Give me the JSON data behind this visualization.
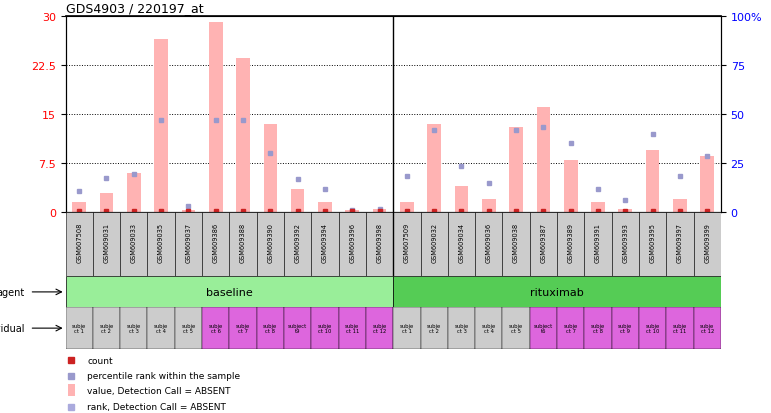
{
  "title": "GDS4903 / 220197_at",
  "samples": [
    "GSM607508",
    "GSM609031",
    "GSM609033",
    "GSM609035",
    "GSM609037",
    "GSM609386",
    "GSM609388",
    "GSM609390",
    "GSM609392",
    "GSM609394",
    "GSM609396",
    "GSM609398",
    "GSM607509",
    "GSM609032",
    "GSM609034",
    "GSM609036",
    "GSM609038",
    "GSM609387",
    "GSM609389",
    "GSM609391",
    "GSM609393",
    "GSM609395",
    "GSM609397",
    "GSM609399"
  ],
  "individuals": [
    "subje\nct 1",
    "subje\nct 2",
    "subje\nct 3",
    "subje\nct 4",
    "subje\nct 5",
    "subje\nct 6",
    "subje\nct 7",
    "subje\nct 8",
    "subject\nt9",
    "subje\nct 10",
    "subje\nct 11",
    "subje\nct 12",
    "subje\nct 1",
    "subje\nct 2",
    "subje\nct 3",
    "subje\nct 4",
    "subje\nct 5",
    "subject\nt6",
    "subje\nct 7",
    "subje\nct 8",
    "subje\nct 9",
    "subje\nct 10",
    "subje\nct 11",
    "subje\nct 12"
  ],
  "ind_colors": [
    "#cccccc",
    "#cccccc",
    "#cccccc",
    "#cccccc",
    "#cccccc",
    "#dd66dd",
    "#dd66dd",
    "#dd66dd",
    "#dd66dd",
    "#dd66dd",
    "#dd66dd",
    "#dd66dd",
    "#cccccc",
    "#cccccc",
    "#cccccc",
    "#cccccc",
    "#cccccc",
    "#dd66dd",
    "#dd66dd",
    "#dd66dd",
    "#dd66dd",
    "#dd66dd",
    "#dd66dd",
    "#dd66dd"
  ],
  "pink_bars": [
    1.5,
    3.0,
    6.0,
    26.5,
    0.3,
    29.0,
    23.5,
    13.5,
    3.5,
    1.5,
    0.3,
    0.5,
    1.5,
    13.5,
    4.0,
    2.0,
    13.0,
    16.0,
    8.0,
    1.5,
    0.5,
    9.5,
    2.0,
    8.5
  ],
  "blue_squares_rank": [
    3.2,
    5.2,
    5.8,
    14.0,
    0.9,
    14.0,
    14.0,
    9.0,
    5.0,
    3.5,
    0.3,
    0.5,
    5.5,
    12.5,
    7.0,
    4.5,
    12.5,
    13.0,
    10.5,
    3.5,
    1.8,
    12.0,
    5.5,
    8.5
  ],
  "pink_bar_color": "#ffb3b3",
  "blue_square_color": "#9999cc",
  "red_square_color": "#cc2222",
  "left_yticks": [
    0,
    7.5,
    15,
    22.5,
    30
  ],
  "right_yticks": [
    0,
    25,
    50,
    75,
    100
  ],
  "ylim_left": [
    0,
    30
  ],
  "ylim_right": [
    0,
    100
  ],
  "background_color": "#ffffff",
  "agent_baseline_color": "#99ee99",
  "agent_rituximab_color": "#55cc55",
  "individual_row_color": "#dd66dd",
  "gray_cell_color": "#cccccc",
  "baseline_count": 12,
  "rituximab_count": 12
}
